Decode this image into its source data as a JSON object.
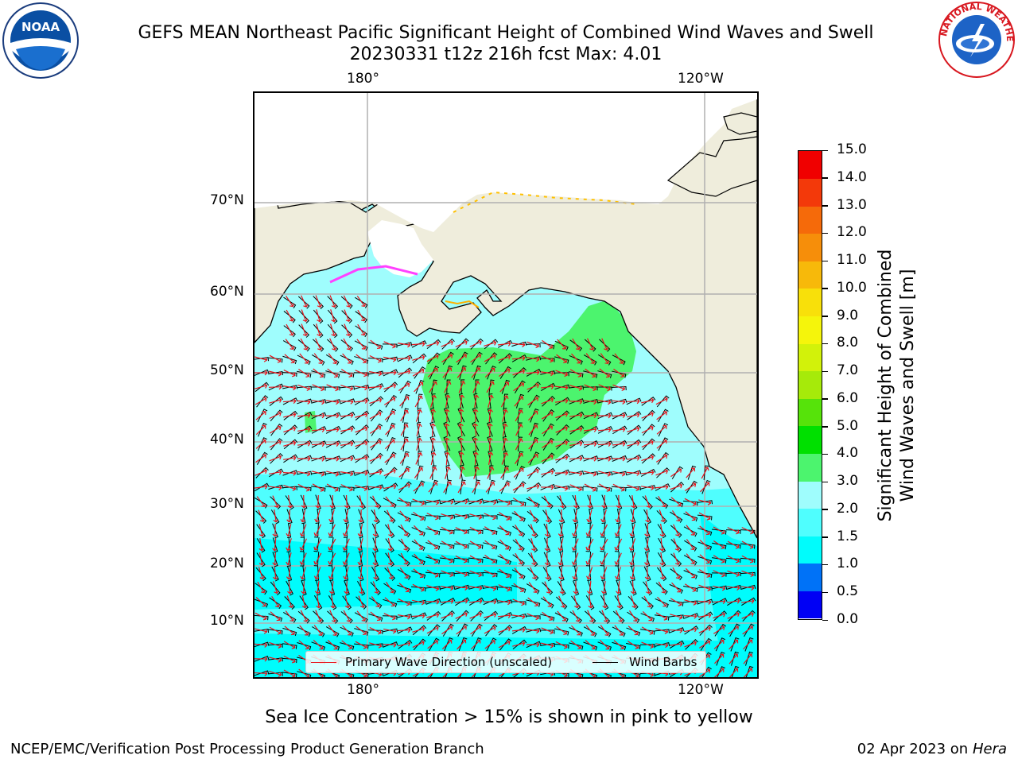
{
  "header": {
    "title_line1": "GEFS MEAN Northeast Pacific Significant Height of Combined Wind Waves and Swell",
    "title_line2": "20230331 t12z 216h fcst   Max: 4.01"
  },
  "logos": {
    "left_name": "noaa-logo",
    "left_text": "NOAA",
    "right_name": "nws-logo",
    "right_text": "NATIONAL WEATHER SERVICE"
  },
  "map": {
    "top_lon_ticks": [
      "180°",
      "120°W"
    ],
    "bottom_lon_ticks": [
      "180°",
      "120°W"
    ],
    "lat_ticks": [
      "70°N",
      "60°N",
      "50°N",
      "40°N",
      "30°N",
      "20°N",
      "10°N"
    ],
    "colors": {
      "land": "#efeddc",
      "ocean_low": "#9ffdfd",
      "ocean_1_5": "#00fcfc",
      "ocean_2": "#4ffefe",
      "ocean_3": "#4cf46e",
      "wave_arrow": "#e8141b",
      "wind_barb": "#000000",
      "gridline": "#b0b0b0"
    },
    "legend": {
      "wave_label": "Primary Wave Direction (unscaled)",
      "barb_label": "Wind Barbs"
    }
  },
  "colorbar": {
    "ticks": [
      "0.0",
      "0.5",
      "1.0",
      "1.5",
      "2.0",
      "3.0",
      "4.0",
      "5.0",
      "6.0",
      "7.0",
      "8.0",
      "9.0",
      "10.0",
      "11.0",
      "12.0",
      "13.0",
      "14.0",
      "15.0"
    ],
    "colors": [
      "#0000f5",
      "#0072f7",
      "#00fcfc",
      "#4ffefe",
      "#9ffdfd",
      "#4cf46e",
      "#00e000",
      "#56e30a",
      "#a6ea0a",
      "#d2f20a",
      "#f5f50b",
      "#f8e00a",
      "#f7b90a",
      "#f68e0a",
      "#f56a0a",
      "#f3390a",
      "#f00000"
    ],
    "label_line1": "Significant Height of Combined",
    "label_line2": "Wind Waves and Swell [m]"
  },
  "caption": "Sea Ice Concentration > 15% is shown in pink to yellow",
  "footer": {
    "left": "NCEP/EMC/Verification Post Processing Product Generation Branch",
    "right_date": "02 Apr 2023 on ",
    "right_host": "Hera"
  }
}
